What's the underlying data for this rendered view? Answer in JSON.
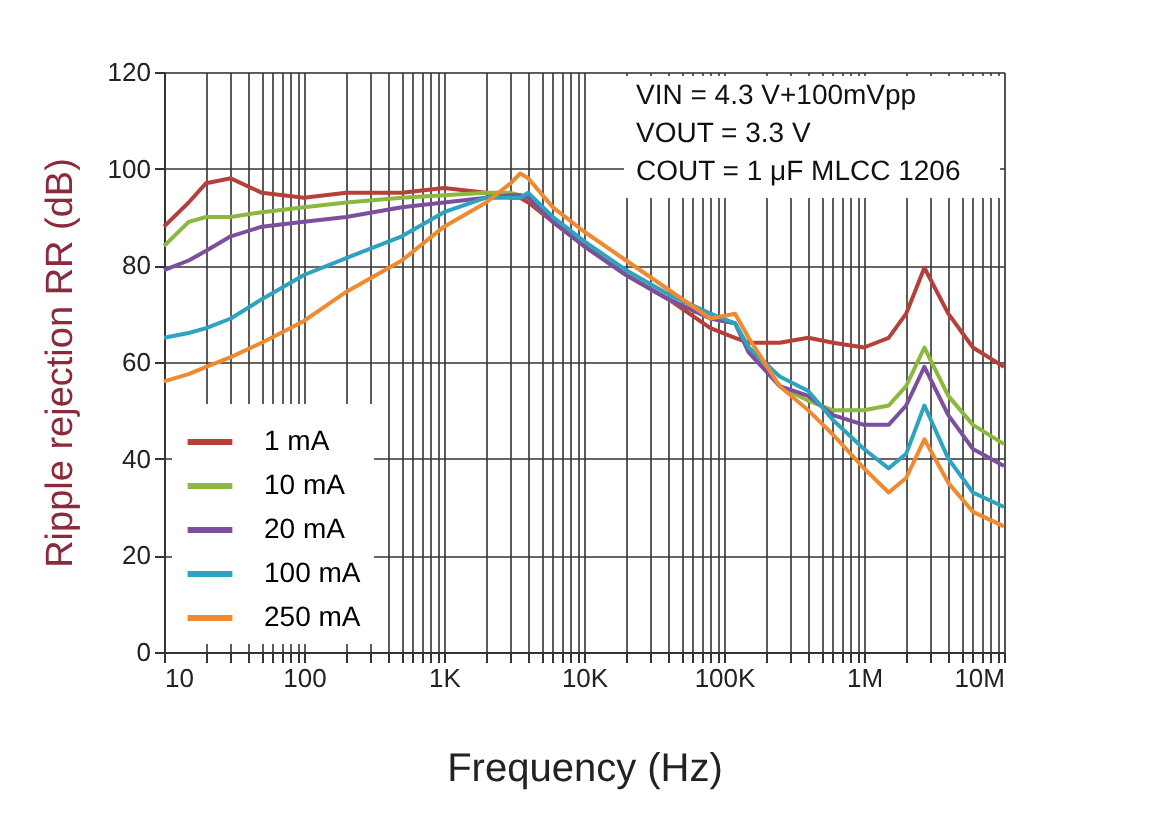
{
  "chart_data": {
    "type": "line",
    "xlabel": "Frequency (Hz)",
    "ylabel": "Ripple rejection RR (dB)",
    "log": "x",
    "grid": true,
    "legend": "bottom left",
    "line_style": "solid",
    "marker": "none",
    "xlim": [
      10,
      10000000
    ],
    "ylim": [
      0,
      120
    ],
    "yticks": [
      0,
      20,
      40,
      60,
      80,
      100,
      120
    ],
    "xticks": [
      {
        "value": 10,
        "label": "10"
      },
      {
        "value": 20,
        "label": null
      },
      {
        "value": 30,
        "label": null
      },
      {
        "value": 40,
        "label": null
      },
      {
        "value": 50,
        "label": null
      },
      {
        "value": 60,
        "label": null
      },
      {
        "value": 70,
        "label": null
      },
      {
        "value": 80,
        "label": null
      },
      {
        "value": 90,
        "label": null
      },
      {
        "value": 100,
        "label": "100"
      },
      {
        "value": 200,
        "label": null
      },
      {
        "value": 300,
        "label": null
      },
      {
        "value": 400,
        "label": null
      },
      {
        "value": 500,
        "label": null
      },
      {
        "value": 600,
        "label": null
      },
      {
        "value": 700,
        "label": null
      },
      {
        "value": 800,
        "label": null
      },
      {
        "value": 900,
        "label": null
      },
      {
        "value": 1000,
        "label": "1K"
      },
      {
        "value": 2000,
        "label": null
      },
      {
        "value": 3000,
        "label": null
      },
      {
        "value": 4000,
        "label": null
      },
      {
        "value": 5000,
        "label": null
      },
      {
        "value": 6000,
        "label": null
      },
      {
        "value": 7000,
        "label": null
      },
      {
        "value": 8000,
        "label": null
      },
      {
        "value": 9000,
        "label": null
      },
      {
        "value": 10000,
        "label": "10K"
      },
      {
        "value": 20000,
        "label": null
      },
      {
        "value": 30000,
        "label": null
      },
      {
        "value": 40000,
        "label": null
      },
      {
        "value": 50000,
        "label": null
      },
      {
        "value": 60000,
        "label": null
      },
      {
        "value": 70000,
        "label": null
      },
      {
        "value": 80000,
        "label": null
      },
      {
        "value": 90000,
        "label": null
      },
      {
        "value": 100000,
        "label": "100K"
      },
      {
        "value": 200000,
        "label": null
      },
      {
        "value": 300000,
        "label": null
      },
      {
        "value": 400000,
        "label": null
      },
      {
        "value": 500000,
        "label": null
      },
      {
        "value": 600000,
        "label": null
      },
      {
        "value": 700000,
        "label": null
      },
      {
        "value": 800000,
        "label": null
      },
      {
        "value": 900000,
        "label": null
      },
      {
        "value": 1000000,
        "label": "1M"
      },
      {
        "value": 2000000,
        "label": null
      },
      {
        "value": 3000000,
        "label": null
      },
      {
        "value": 4000000,
        "label": null
      },
      {
        "value": 5000000,
        "label": null
      },
      {
        "value": 6000000,
        "label": null
      },
      {
        "value": 7000000,
        "label": null
      },
      {
        "value": 8000000,
        "label": null
      },
      {
        "value": 9000000,
        "label": null
      },
      {
        "value": 10000000,
        "label": "10M"
      }
    ],
    "x": [
      10,
      15,
      20,
      30,
      50,
      100,
      200,
      500,
      1000,
      2000,
      3000,
      3500,
      4000,
      6000,
      10000,
      20000,
      40000,
      80000,
      120000,
      150000,
      250000,
      400000,
      600000,
      1000000,
      1500000,
      2000000,
      2700000,
      4000000,
      6000000,
      10000000
    ],
    "annotations": [
      "VIN = 4.3 V+100mVpp",
      "VOUT = 3.3 V",
      "COUT = 1 μF MLCC 1206"
    ],
    "series": [
      {
        "name": "1 mA",
        "color": "#b5403a",
        "values": [
          88,
          93,
          97,
          98,
          95,
          94,
          95,
          95,
          96,
          95,
          94,
          94,
          93,
          89,
          84,
          78,
          73,
          67,
          65,
          64,
          64,
          65,
          64,
          63,
          65,
          70,
          79.5,
          70,
          63,
          59
        ]
      },
      {
        "name": "10 mA",
        "color": "#8cb840",
        "values": [
          84,
          89,
          90,
          90,
          91,
          92,
          93,
          94,
          94.5,
          95,
          95,
          94.5,
          94,
          89,
          84,
          78,
          73,
          69,
          68,
          63,
          55,
          52,
          50,
          50,
          51,
          55,
          63,
          53,
          47,
          43
        ]
      },
      {
        "name": "20 mA",
        "color": "#7b4f9e",
        "values": [
          79,
          81,
          83,
          86,
          88,
          89,
          90,
          92,
          93,
          94,
          94.5,
          94.5,
          94,
          89,
          84,
          78,
          73,
          69,
          68,
          62,
          55,
          53,
          49,
          47,
          47,
          51,
          59,
          49,
          42,
          38.5
        ]
      },
      {
        "name": "100 mA",
        "color": "#2ea3c0",
        "values": [
          65,
          66,
          67,
          69,
          73,
          78,
          81.5,
          86,
          91,
          94,
          94,
          94,
          95,
          90,
          85,
          79,
          74,
          70,
          68,
          63,
          57,
          54,
          48,
          42,
          38,
          41,
          51,
          40,
          33,
          30
        ]
      },
      {
        "name": "250 mA",
        "color": "#f08a30",
        "values": [
          56,
          57.5,
          59,
          61,
          64,
          68.5,
          74.5,
          81,
          88,
          93,
          97,
          99,
          98,
          92,
          87,
          81,
          75,
          69,
          70,
          65,
          55,
          50,
          45,
          38,
          33,
          36,
          44,
          35,
          29,
          26
        ]
      }
    ]
  }
}
